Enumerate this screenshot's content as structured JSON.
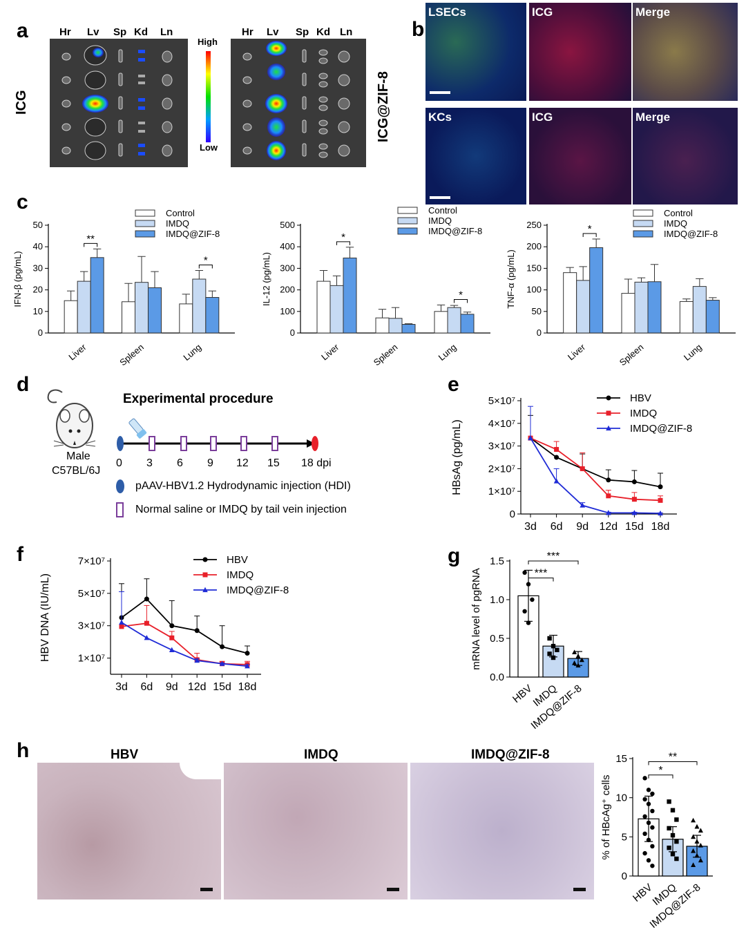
{
  "panel_labels": {
    "a": "a",
    "b": "b",
    "c": "c",
    "d": "d",
    "e": "e",
    "f": "f",
    "g": "g",
    "h": "h"
  },
  "panel_a": {
    "organs": [
      "Hr",
      "Lv",
      "Sp",
      "Kd",
      "Ln"
    ],
    "group_left": "ICG",
    "group_right": "ICG@ZIF-8",
    "scale_high": "High",
    "scale_low": "Low",
    "colors": {
      "bg": "#3c3c3c",
      "hot": "#ff2a00",
      "cold": "#1a1aff"
    }
  },
  "panel_b": {
    "row1": [
      "LSECs",
      "ICG",
      "Merge"
    ],
    "row2": [
      "KCs",
      "ICG",
      "Merge"
    ]
  },
  "panel_d": {
    "title": "Experimental procedure",
    "days": [
      "0",
      "3",
      "6",
      "9",
      "12",
      "15",
      "18 dpi"
    ],
    "mouse_label_1": "Male",
    "mouse_label_2": "C57BL/6J",
    "legend_hdi": "pAAV-HBV1.2  Hydrodynamic injection (HDI)",
    "legend_saline": "Normal saline or IMDQ  by tail vein injection",
    "colors": {
      "start": "#2e5da8",
      "end": "#e8202a",
      "box": "#7a3d9a"
    }
  },
  "panel_h": {
    "titles": [
      "HBV",
      "IMDQ",
      "IMDQ@ZIF-8"
    ]
  },
  "chart_data": [
    {
      "id": "c1",
      "type": "bar",
      "categories": [
        "Liver",
        "Spleen",
        "Lung"
      ],
      "series": [
        {
          "name": "Control",
          "values": [
            15,
            14.5,
            13.5
          ],
          "errors": [
            4.5,
            8.5,
            4.5
          ]
        },
        {
          "name": "IMDQ",
          "values": [
            24,
            23.5,
            25
          ],
          "errors": [
            4.5,
            12,
            4
          ]
        },
        {
          "name": "IMDQ@ZIF-8",
          "values": [
            35,
            21,
            16.5
          ],
          "errors": [
            4,
            7.5,
            3
          ]
        }
      ],
      "ylabel": "IFN-β (pg/mL)",
      "ylim": [
        0,
        50
      ],
      "yticks": [
        0,
        10,
        20,
        30,
        40,
        50
      ],
      "sig": [
        {
          "cat": 0,
          "from": 1,
          "to": 2,
          "label": "**"
        },
        {
          "cat": 2,
          "from": 1,
          "to": 2,
          "label": "*"
        }
      ],
      "colors": [
        "#ffffff",
        "#c6daf3",
        "#5b9ae6"
      ]
    },
    {
      "id": "c2",
      "type": "bar",
      "categories": [
        "Liver",
        "Spleen",
        "Lung"
      ],
      "series": [
        {
          "name": "Control",
          "values": [
            240,
            70,
            100
          ],
          "errors": [
            50,
            40,
            30
          ]
        },
        {
          "name": "IMDQ",
          "values": [
            220,
            68,
            118
          ],
          "errors": [
            45,
            50,
            10
          ]
        },
        {
          "name": "IMDQ@ZIF-8",
          "values": [
            348,
            40,
            87
          ],
          "errors": [
            50,
            3,
            10
          ]
        }
      ],
      "ylabel": "IL-12 (pg/mL)",
      "ylim": [
        0,
        500
      ],
      "yticks": [
        0,
        100,
        200,
        300,
        400,
        500
      ],
      "sig": [
        {
          "cat": 0,
          "from": 1,
          "to": 2,
          "label": "*"
        },
        {
          "cat": 2,
          "from": 1,
          "to": 2,
          "label": "*"
        }
      ],
      "colors": [
        "#ffffff",
        "#c6daf3",
        "#5b9ae6"
      ]
    },
    {
      "id": "c3",
      "type": "bar",
      "categories": [
        "Liver",
        "Spleen",
        "Lung"
      ],
      "series": [
        {
          "name": "Control",
          "values": [
            140,
            92,
            73
          ],
          "errors": [
            12,
            33,
            6
          ]
        },
        {
          "name": "IMDQ",
          "values": [
            122,
            118,
            108
          ],
          "errors": [
            32,
            10,
            18
          ]
        },
        {
          "name": "IMDQ@ZIF-8",
          "values": [
            198,
            119,
            76
          ],
          "errors": [
            20,
            40,
            6
          ]
        }
      ],
      "ylabel": "TNF-α (pg/mL)",
      "ylim": [
        0,
        250
      ],
      "yticks": [
        0,
        50,
        100,
        150,
        200,
        250
      ],
      "sig": [
        {
          "cat": 0,
          "from": 1,
          "to": 2,
          "label": "*"
        }
      ],
      "colors": [
        "#ffffff",
        "#c6daf3",
        "#5b9ae6"
      ]
    },
    {
      "id": "e",
      "type": "line",
      "x": [
        "3d",
        "6d",
        "9d",
        "12d",
        "15d",
        "18d"
      ],
      "series": [
        {
          "name": "HBV",
          "values": [
            33.5,
            25,
            20,
            15,
            14.2,
            12
          ],
          "errors": [
            10,
            0,
            6.5,
            4.5,
            5,
            6
          ],
          "color": "#000000",
          "marker": "circle"
        },
        {
          "name": "IMDQ",
          "values": [
            33.5,
            28.5,
            20,
            8,
            6.5,
            6
          ],
          "errors": [
            0,
            3.5,
            7,
            2.5,
            3,
            2
          ],
          "color": "#e8202a",
          "marker": "square"
        },
        {
          "name": "IMDQ@ZIF-8",
          "values": [
            33.5,
            14.5,
            3.8,
            0.5,
            0.5,
            0.3
          ],
          "errors": [
            14,
            5.5,
            1.2,
            0.3,
            0.3,
            0.2
          ],
          "color": "#1f2bd6",
          "marker": "triangle"
        }
      ],
      "ylabel": "HBsAg (pg/mL)",
      "ylim": [
        0,
        50
      ],
      "yticks": [
        0,
        10,
        20,
        30,
        40,
        50
      ],
      "ytick_labels": [
        "0",
        "1×10⁷",
        "2×10⁷",
        "3×10⁷",
        "4×10⁷",
        "5×10⁷"
      ]
    },
    {
      "id": "f",
      "type": "line",
      "x": [
        "3d",
        "6d",
        "9d",
        "12d",
        "15d",
        "18d"
      ],
      "series": [
        {
          "name": "HBV",
          "values": [
            35,
            46.5,
            30,
            27,
            17,
            13
          ],
          "errors": [
            21,
            12.5,
            15.5,
            9,
            13,
            4.5
          ],
          "color": "#000000",
          "marker": "circle"
        },
        {
          "name": "IMDQ",
          "values": [
            29.5,
            31.5,
            22.5,
            9,
            6.5,
            6
          ],
          "errors": [
            0,
            11,
            4,
            4,
            1.5,
            2
          ],
          "color": "#e8202a",
          "marker": "square"
        },
        {
          "name": "IMDQ@ZIF-8",
          "values": [
            32,
            22.5,
            15,
            8.5,
            6.5,
            5
          ],
          "errors": [
            19,
            0,
            0,
            1,
            0.5,
            1
          ],
          "color": "#1f2bd6",
          "marker": "triangle"
        }
      ],
      "ylabel": "HBV DNA (IU/mL)",
      "ylim": [
        0,
        70
      ],
      "yticks": [
        10,
        30,
        50,
        70
      ],
      "ytick_labels": [
        "1×10⁷",
        "3×10⁷",
        "5×10⁷",
        "7×10⁷"
      ]
    },
    {
      "id": "g",
      "type": "bar",
      "categories": [
        "HBV",
        "IMDQ",
        "IMDQ@ZIF-8"
      ],
      "values": [
        1.05,
        0.4,
        0.24
      ],
      "errors": [
        0.33,
        0.14,
        0.09
      ],
      "points": [
        [
          1.35,
          1.2,
          1.0,
          0.85,
          0.7
        ],
        [
          0.5,
          0.4,
          0.35,
          0.3,
          0.25
        ],
        [
          0.32,
          0.27,
          0.22,
          0.18,
          0.15
        ]
      ],
      "markers": [
        "circle",
        "square",
        "triangle"
      ],
      "ylabel": "mRNA level of pgRNA",
      "ylim": [
        0,
        1.5
      ],
      "yticks": [
        0,
        0.5,
        1.0,
        1.5
      ],
      "ytick_labels": [
        "0.0",
        "0.5",
        "1.0",
        "1.5"
      ],
      "sig": [
        {
          "from": 0,
          "to": 1,
          "label": "***",
          "level": 1.28
        },
        {
          "from": 0,
          "to": 2,
          "label": "***",
          "level": 1.5
        }
      ],
      "colors": [
        "#ffffff",
        "#c6daf3",
        "#5b9ae6"
      ]
    },
    {
      "id": "h",
      "type": "bar",
      "categories": [
        "HBV",
        "IMDQ",
        "IMDQ@ZIF-8"
      ],
      "values": [
        7.3,
        4.7,
        3.8
      ],
      "errors": [
        2.9,
        1.6,
        1.4
      ],
      "points": [
        [
          12.5,
          11,
          10.5,
          9.8,
          9.2,
          8.3,
          7.6,
          6.8,
          6.2,
          5.4,
          4.6,
          3.8,
          2.9,
          2.0,
          1.3
        ],
        [
          9.5,
          8.4,
          7.2,
          6.1,
          5.2,
          4.4,
          3.6,
          2.8,
          2.2
        ],
        [
          7.1,
          6.3,
          5.8,
          5.0,
          4.4,
          3.9,
          3.2,
          2.6,
          2.0,
          1.4
        ]
      ],
      "markers": [
        "circle",
        "square",
        "triangle"
      ],
      "ylabel": "% of HBcAg⁺ cells",
      "ylim": [
        0,
        15
      ],
      "yticks": [
        0,
        5,
        10,
        15
      ],
      "sig": [
        {
          "from": 0,
          "to": 1,
          "label": "*",
          "level": 12.9
        },
        {
          "from": 0,
          "to": 2,
          "label": "**",
          "level": 14.6
        }
      ],
      "colors": [
        "#ffffff",
        "#c6daf3",
        "#5b9ae6"
      ]
    }
  ]
}
